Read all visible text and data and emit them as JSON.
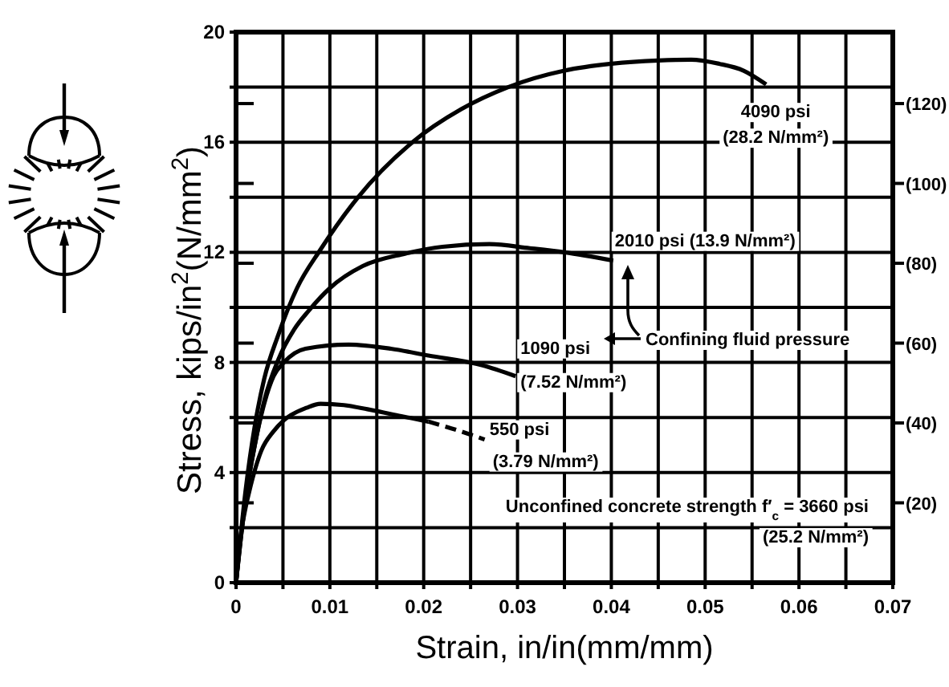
{
  "chart_data": {
    "type": "line",
    "xlabel": "Strain, in/in(mm/mm)",
    "ylabel": "Stress, kips/in$^{2}$(N/mm$^{2}$)",
    "xlim": [
      0,
      0.07
    ],
    "ylim": [
      0,
      20
    ],
    "y2lim": [
      0,
      137.9
    ],
    "xticks": [
      0,
      {
        "value": 0.005,
        "label": null
      },
      0.01,
      {
        "value": 0.015,
        "label": null
      },
      0.02,
      {
        "value": 0.025,
        "label": null
      },
      0.03,
      {
        "value": 0.035,
        "label": null
      },
      0.04,
      {
        "value": 0.045,
        "label": null
      },
      0.05,
      {
        "value": 0.055,
        "label": null
      },
      0.06,
      {
        "value": 0.065,
        "label": null
      },
      0.07
    ],
    "yticks": [
      0,
      {
        "value": 2,
        "label": null
      },
      4,
      {
        "value": 6,
        "label": null
      },
      8,
      {
        "value": 10,
        "label": null
      },
      12,
      {
        "value": 14,
        "label": null
      },
      16,
      {
        "value": 18,
        "label": null
      },
      20
    ],
    "y2ticks": [
      {
        "value": 20,
        "label": "(20)"
      },
      {
        "value": 40,
        "label": "(40)"
      },
      {
        "value": 60,
        "label": "(60)"
      },
      {
        "value": 80,
        "label": "(80)"
      },
      {
        "value": 100,
        "label": "(100)"
      },
      {
        "value": 120,
        "label": "(120)"
      }
    ],
    "grid": true,
    "series": [
      {
        "name": "4090 psi\n(28.2 N/mm²)",
        "color": "#000000",
        "x": [
          0,
          0.001,
          0.002,
          0.003,
          0.0045,
          0.0065,
          0.009,
          0.013,
          0.0188,
          0.024,
          0.029,
          0.035,
          0.04,
          0.045,
          0.0485,
          0.0515,
          0.0541,
          0.0565
        ],
        "values": [
          0,
          3.3,
          5.7,
          7.4,
          9,
          10.7,
          12.1,
          14,
          16,
          17.2,
          18,
          18.6,
          18.85,
          18.97,
          19,
          18.85,
          18.6,
          18.1
        ]
      },
      {
        "name": "2010 psi (13.9 N/mm²)",
        "color": "#000000",
        "x": [
          0,
          0.001,
          0.002,
          0.003,
          0.0045,
          0.0062,
          0.0078,
          0.01,
          0.0135,
          0.018,
          0.022,
          0.027,
          0.0313,
          0.035,
          0.0402
        ],
        "values": [
          0,
          3,
          5,
          6.6,
          8.1,
          9.2,
          9.9,
          10.7,
          11.5,
          11.95,
          12.2,
          12.3,
          12.15,
          12,
          11.7
        ]
      },
      {
        "name": "1090 psi\n(7.52 N/mm²)",
        "color": "#000000",
        "x": [
          0,
          0.001,
          0.002,
          0.003,
          0.004,
          0.0051,
          0.0074,
          0.012,
          0.0165,
          0.0205,
          0.0262,
          0.0298
        ],
        "values": [
          0,
          3,
          5,
          6.5,
          7.5,
          8,
          8.5,
          8.65,
          8.5,
          8.25,
          7.9,
          7.5
        ]
      },
      {
        "color": "#000000",
        "x": [
          0,
          0.0005,
          0.001,
          0.0014,
          0.0027,
          0.004,
          0.0051,
          0.0075,
          0.009,
          0.0115,
          0.014,
          0.0176,
          0.0205
        ],
        "values": [
          0,
          1.7,
          2.7,
          3.3,
          4.8,
          5.5,
          5.9,
          6.35,
          6.5,
          6.45,
          6.3,
          6.05,
          5.85
        ]
      },
      {
        "name": "550 psi\n(3.79 N/mm²)",
        "color": "#000000",
        "line_style": "dashed",
        "x": [
          0.0205,
          0.023,
          0.0265
        ],
        "values": [
          5.85,
          5.6,
          5.2
        ]
      }
    ],
    "annotations": [
      "Confining fluid pressure",
      "Unconfined concrete strength f′$_{c}$ = 3660 psi\n(25.2 N/mm²)"
    ]
  }
}
